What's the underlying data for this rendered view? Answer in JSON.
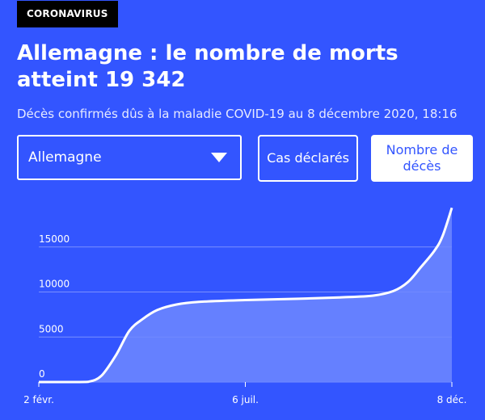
{
  "tag": "CORONAVIRUS",
  "title": "Allemagne : le nombre de morts atteint 19 342",
  "subtitle": "Décès confirmés dûs à la maladie COVID-19 au 8 décembre 2020, 18:16",
  "controls": {
    "country_select": {
      "value": "Allemagne"
    },
    "cases_button": "Cas déclarés",
    "deaths_button": "Nombre de décès"
  },
  "colors": {
    "background": "#3355ff",
    "line": "#ffffff",
    "area_fill": "#6f88ff",
    "selected_button_text": "#3355ff"
  },
  "chart_data": {
    "type": "area",
    "title": "",
    "xlabel": "",
    "ylabel": "",
    "ylim": [
      0,
      20000
    ],
    "yticks": [
      {
        "value": 0,
        "label": "0"
      },
      {
        "value": 5000,
        "label": "5000"
      },
      {
        "value": 10000,
        "label": "10000"
      },
      {
        "value": 15000,
        "label": "15000"
      }
    ],
    "xticks": [
      {
        "date": "2020-02-02",
        "label": "2 févr."
      },
      {
        "date": "2020-07-06",
        "label": "6 juil."
      },
      {
        "date": "2020-12-08",
        "label": "8 déc."
      }
    ],
    "grid": true,
    "series": [
      {
        "values": [
          {
            "date": "2020-02-02",
            "value": 0
          },
          {
            "date": "2020-03-01",
            "value": 0
          },
          {
            "date": "2020-03-10",
            "value": 20
          },
          {
            "date": "2020-03-20",
            "value": 700
          },
          {
            "date": "2020-03-31",
            "value": 3000
          },
          {
            "date": "2020-04-10",
            "value": 5700
          },
          {
            "date": "2020-04-20",
            "value": 7000
          },
          {
            "date": "2020-05-01",
            "value": 8000
          },
          {
            "date": "2020-05-15",
            "value": 8600
          },
          {
            "date": "2020-06-01",
            "value": 8900
          },
          {
            "date": "2020-07-06",
            "value": 9100
          },
          {
            "date": "2020-08-15",
            "value": 9250
          },
          {
            "date": "2020-09-15",
            "value": 9400
          },
          {
            "date": "2020-10-10",
            "value": 9600
          },
          {
            "date": "2020-10-25",
            "value": 10100
          },
          {
            "date": "2020-11-05",
            "value": 11100
          },
          {
            "date": "2020-11-15",
            "value": 12800
          },
          {
            "date": "2020-11-25",
            "value": 14600
          },
          {
            "date": "2020-12-01",
            "value": 16200
          },
          {
            "date": "2020-12-08",
            "value": 19342
          }
        ]
      }
    ]
  }
}
